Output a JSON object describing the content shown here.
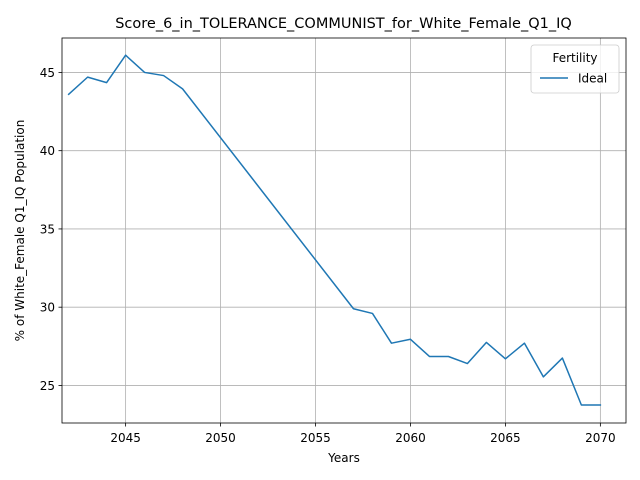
{
  "chart_data": {
    "type": "line",
    "title": "Score_6_in_TOLERANCE_COMMUNIST_for_White_Female_Q1_IQ",
    "xlabel": "Years",
    "ylabel": "% of White_Female Q1_IQ Population",
    "xlim": [
      2041.65,
      2071.35
    ],
    "ylim": [
      22.6,
      47.2
    ],
    "xticks": [
      2045,
      2050,
      2055,
      2060,
      2065,
      2070
    ],
    "yticks": [
      25,
      30,
      35,
      40,
      45
    ],
    "grid": true,
    "legend": {
      "title": "Fertility",
      "position": "top-right"
    },
    "series": [
      {
        "name": "Ideal",
        "color": "#1f77b4",
        "x": [
          2042,
          2043,
          2044,
          2045,
          2046,
          2047,
          2048,
          2057,
          2058,
          2059,
          2060,
          2061,
          2062,
          2063,
          2064,
          2065,
          2066,
          2067,
          2068,
          2069,
          2070
        ],
        "y": [
          43.6,
          44.7,
          44.35,
          46.1,
          45.0,
          44.8,
          43.95,
          29.9,
          29.6,
          27.7,
          27.95,
          26.85,
          26.85,
          26.4,
          27.75,
          26.7,
          27.7,
          25.55,
          26.75,
          23.75,
          23.75
        ]
      }
    ]
  }
}
